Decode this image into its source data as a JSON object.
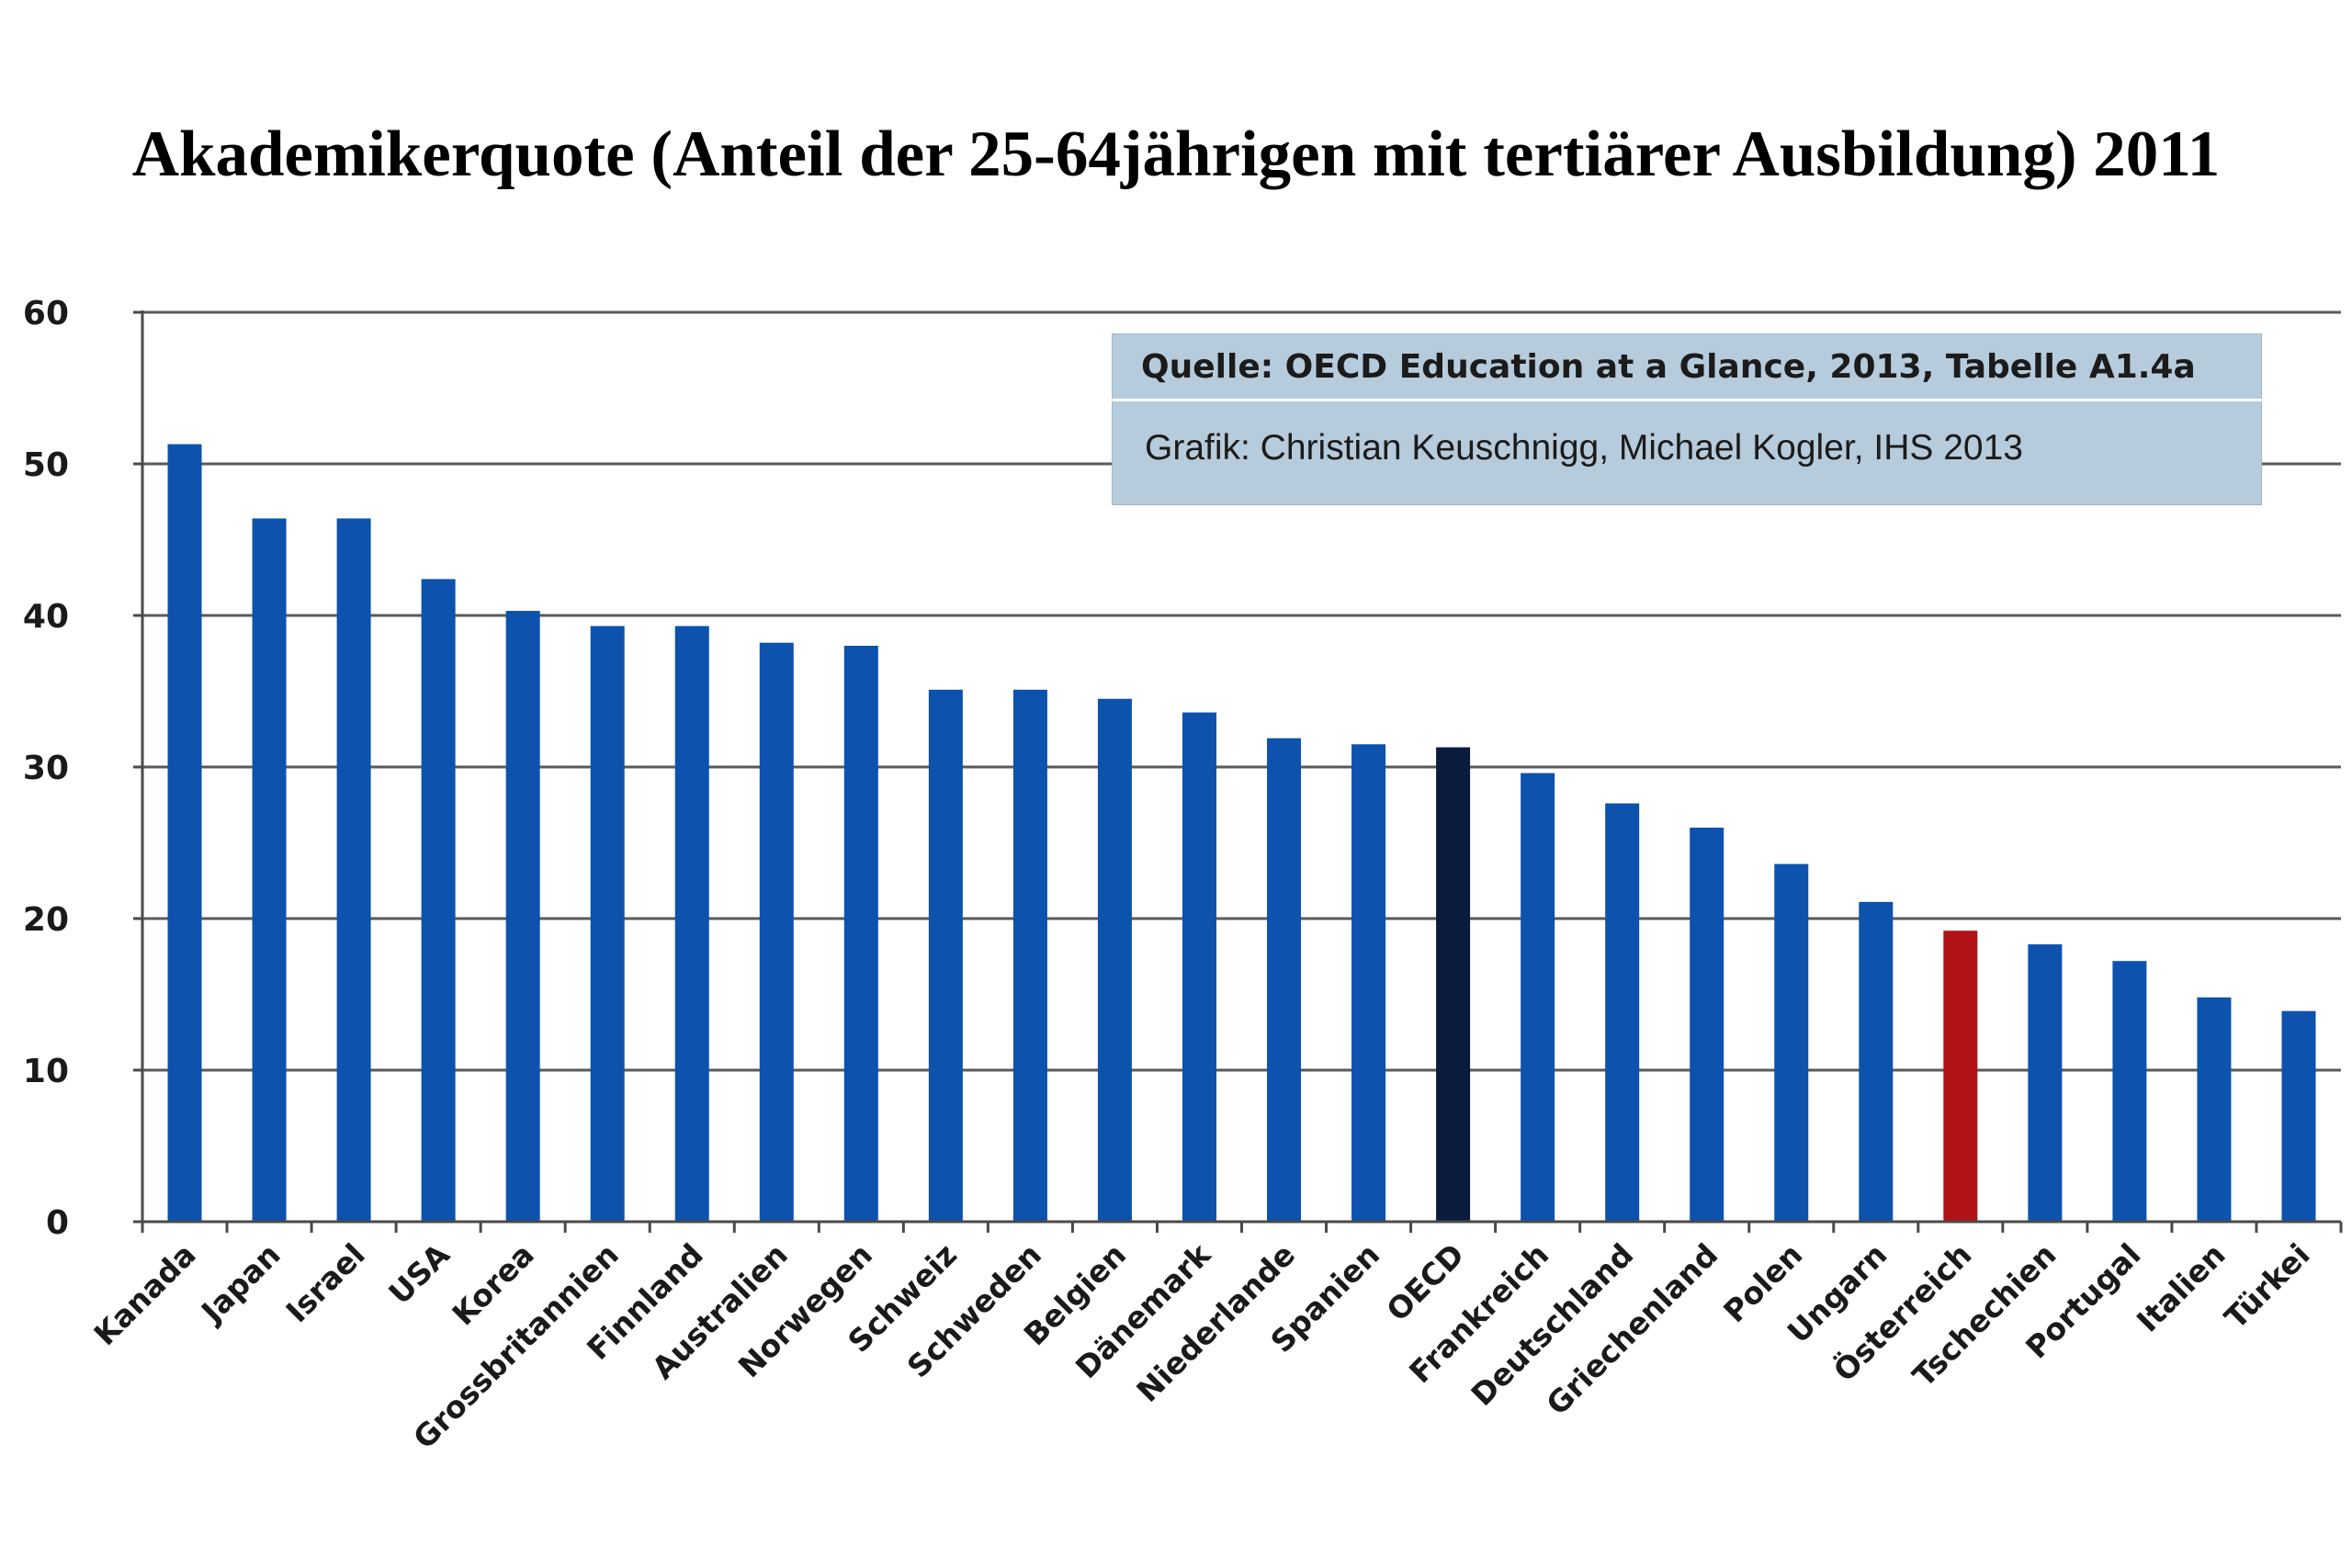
{
  "chart_data": {
    "type": "bar",
    "title": "Akademikerquote (Anteil der 25-64jährigen mit tertiärer Ausbildung) 2011",
    "xlabel": "",
    "ylabel": "",
    "ylim": [
      0,
      60
    ],
    "yticks": [
      "0",
      "10",
      "20",
      "30",
      "40",
      "50",
      "60"
    ],
    "grid": true,
    "categories": [
      "Kanada",
      "Japan",
      "Israel",
      "USA",
      "Korea",
      "Grossbritannien",
      "Finnland",
      "Australien",
      "Norwegen",
      "Schweiz",
      "Schweden",
      "Belgien",
      "Dänemark",
      "Niederlande",
      "Spanien",
      "OECD",
      "Frankreich",
      "Deutschland",
      "Griechenland",
      "Polen",
      "Ungarn",
      "Österreich",
      "Tschechien",
      "Portugal",
      "Italien",
      "Türkei"
    ],
    "values": [
      51.3,
      46.4,
      46.4,
      42.4,
      40.3,
      39.3,
      39.3,
      38.2,
      38.0,
      35.1,
      35.1,
      34.5,
      33.6,
      31.9,
      31.5,
      31.3,
      29.6,
      27.6,
      26.0,
      23.6,
      21.1,
      19.2,
      18.3,
      17.2,
      14.8,
      13.9
    ],
    "colors": {
      "default": "#0d52ad",
      "highlight_oecd": "#0a1b3d",
      "highlight_austria": "#b01316",
      "grid": "#5a5a5a",
      "axis": "#4a4a4a"
    },
    "highlights": {
      "OECD": "highlight_oecd",
      "Österreich": "highlight_austria"
    },
    "annotation": {
      "source": "Quelle: OECD Education at a Glance, 2013, Tabelle A1.4a",
      "credit": "Grafik: Christian Keuschnigg, Michael Kogler, IHS 2013"
    }
  }
}
